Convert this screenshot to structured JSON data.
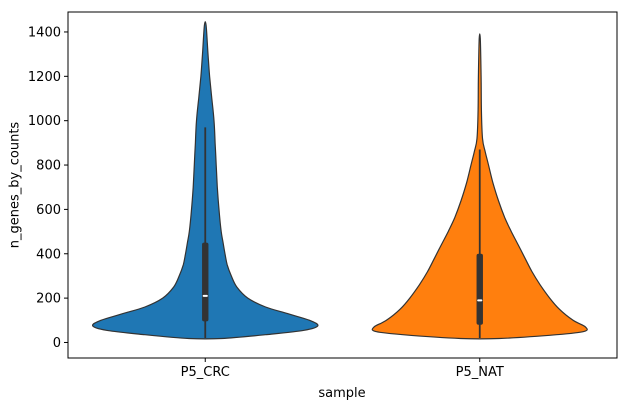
{
  "chart_data": {
    "type": "violin",
    "title": "",
    "xlabel": "sample",
    "ylabel": "n_genes_by_counts",
    "categories": [
      "P5_CRC",
      "P5_NAT"
    ],
    "yticks": [
      0,
      200,
      400,
      600,
      800,
      1000,
      1200,
      1400
    ],
    "ylim": [
      -70,
      1490
    ],
    "legend": "none",
    "grid": false,
    "edge_color": "#333333",
    "series": [
      {
        "name": "P5_CRC",
        "color": "#1f77b4",
        "summary": {
          "whisker_low": 20,
          "q1": 95,
          "median": 210,
          "q3": 450,
          "whisker_high": 970,
          "min": 18,
          "max": 1430
        },
        "shape": [
          {
            "y": 18,
            "w": 0.06
          },
          {
            "y": 35,
            "w": 0.22
          },
          {
            "y": 55,
            "w": 0.36
          },
          {
            "y": 75,
            "w": 0.41
          },
          {
            "y": 100,
            "w": 0.38
          },
          {
            "y": 130,
            "w": 0.3
          },
          {
            "y": 160,
            "w": 0.22
          },
          {
            "y": 200,
            "w": 0.155
          },
          {
            "y": 250,
            "w": 0.115
          },
          {
            "y": 300,
            "w": 0.095
          },
          {
            "y": 350,
            "w": 0.08
          },
          {
            "y": 400,
            "w": 0.072
          },
          {
            "y": 450,
            "w": 0.065
          },
          {
            "y": 500,
            "w": 0.058
          },
          {
            "y": 600,
            "w": 0.05
          },
          {
            "y": 700,
            "w": 0.044
          },
          {
            "y": 800,
            "w": 0.04
          },
          {
            "y": 900,
            "w": 0.036
          },
          {
            "y": 1000,
            "w": 0.032
          },
          {
            "y": 1100,
            "w": 0.024
          },
          {
            "y": 1200,
            "w": 0.016
          },
          {
            "y": 1300,
            "w": 0.01
          },
          {
            "y": 1430,
            "w": 0.003
          }
        ]
      },
      {
        "name": "P5_NAT",
        "color": "#ff7f0e",
        "summary": {
          "whisker_low": 20,
          "q1": 80,
          "median": 190,
          "q3": 400,
          "whisker_high": 870,
          "min": 18,
          "max": 1370
        },
        "shape": [
          {
            "y": 18,
            "w": 0.07
          },
          {
            "y": 35,
            "w": 0.28
          },
          {
            "y": 50,
            "w": 0.38
          },
          {
            "y": 70,
            "w": 0.385
          },
          {
            "y": 100,
            "w": 0.34
          },
          {
            "y": 150,
            "w": 0.29
          },
          {
            "y": 200,
            "w": 0.255
          },
          {
            "y": 260,
            "w": 0.22
          },
          {
            "y": 320,
            "w": 0.19
          },
          {
            "y": 380,
            "w": 0.165
          },
          {
            "y": 440,
            "w": 0.14
          },
          {
            "y": 500,
            "w": 0.115
          },
          {
            "y": 560,
            "w": 0.092
          },
          {
            "y": 640,
            "w": 0.068
          },
          {
            "y": 720,
            "w": 0.048
          },
          {
            "y": 800,
            "w": 0.032
          },
          {
            "y": 860,
            "w": 0.02
          },
          {
            "y": 920,
            "w": 0.01
          },
          {
            "y": 1050,
            "w": 0.006
          },
          {
            "y": 1200,
            "w": 0.005
          },
          {
            "y": 1370,
            "w": 0.002
          }
        ]
      }
    ]
  }
}
